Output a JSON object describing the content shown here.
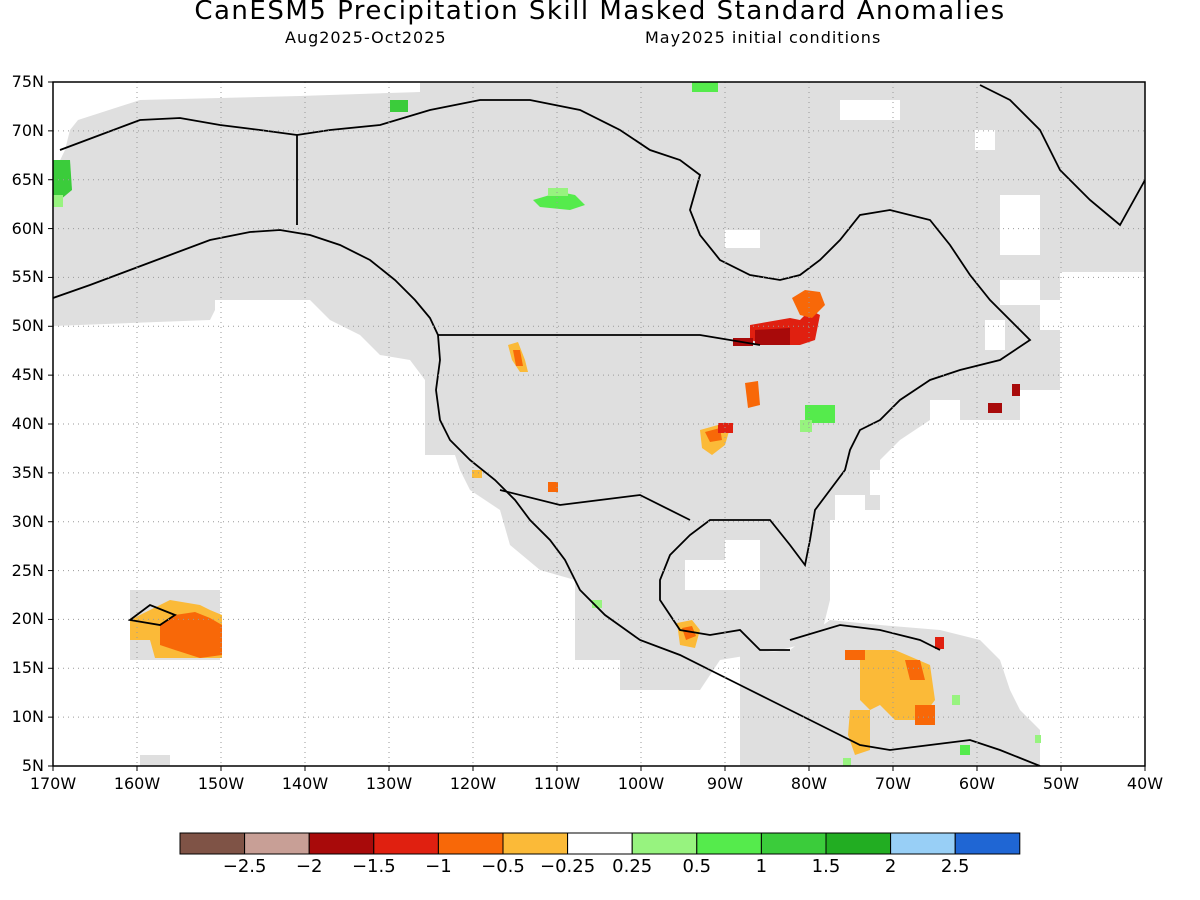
{
  "title": "CanESM5 Precipitation Skill Masked Standard Anomalies",
  "subtitle_left": "Aug2025-Oct2025",
  "subtitle_right": "May2025 initial conditions",
  "lat_labels": [
    "75N",
    "70N",
    "65N",
    "60N",
    "55N",
    "50N",
    "45N",
    "40N",
    "35N",
    "30N",
    "25N",
    "20N",
    "15N",
    "10N",
    "5N"
  ],
  "lon_labels": [
    "170W",
    "160W",
    "150W",
    "140W",
    "130W",
    "120W",
    "110W",
    "100W",
    "90W",
    "80W",
    "70W",
    "60W",
    "50W",
    "40W"
  ],
  "colorbar": {
    "colors": [
      "#7f5346",
      "#c89f96",
      "#a80a0a",
      "#e02010",
      "#f86808",
      "#fbba38",
      "#ffffff",
      "#97f37f",
      "#55eb4c",
      "#3bcc3b",
      "#22ad22",
      "#98cff6",
      "#1f66d4"
    ],
    "labels": [
      "-2.5",
      "-2",
      "-1.5",
      "-1",
      "-0.5",
      "-0.25",
      "0.25",
      "0.5",
      "1",
      "1.5",
      "2",
      "2.5"
    ]
  },
  "colors": {
    "mask_gray": "#dfdfdf",
    "gridline": "#9a9a9a",
    "coastline": "#000000"
  }
}
